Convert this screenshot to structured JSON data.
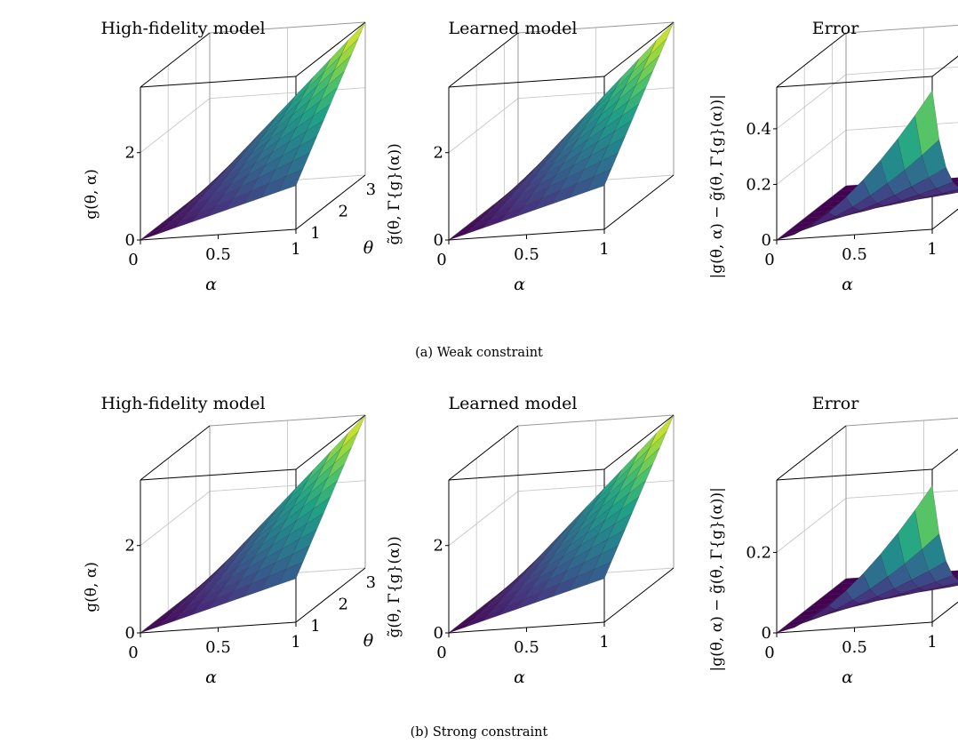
{
  "figure": {
    "captions": [
      "(a)  Weak constraint",
      "(b)  Strong constraint"
    ],
    "colormap": [
      "#440154",
      "#46327e",
      "#365c8d",
      "#277f8e",
      "#1fa187",
      "#4ac16d",
      "#a0da39",
      "#fde725"
    ]
  },
  "chart_data": [
    {
      "row": 0,
      "col": 0,
      "type": "surface",
      "title": "High-fidelity model",
      "xlabel": "α",
      "ylabel": "θ",
      "zlabel": "g(θ, α)",
      "x_range": [
        0,
        1
      ],
      "y_range": [
        1,
        3.5
      ],
      "z_range": [
        0,
        3.5
      ],
      "x_ticks": [
        "0",
        "0.5",
        "1"
      ],
      "x_tick_values": [
        0,
        0.5,
        1
      ],
      "y_ticks": [
        "1",
        "2",
        "3"
      ],
      "y_tick_values": [
        1,
        2,
        3
      ],
      "z_ticks": [
        "0",
        "2"
      ],
      "z_tick_values": [
        0,
        2
      ],
      "function": "theta*alpha",
      "grid": true
    },
    {
      "row": 0,
      "col": 1,
      "type": "surface",
      "title": "Learned model",
      "xlabel": "α",
      "ylabel": "",
      "zlabel": "g̃(θ, Γ{g}(α))",
      "x_range": [
        0,
        1
      ],
      "y_range": [
        1,
        3.5
      ],
      "z_range": [
        0,
        3.5
      ],
      "x_ticks": [
        "0",
        "0.5",
        "1"
      ],
      "x_tick_values": [
        0,
        0.5,
        1
      ],
      "y_ticks": [],
      "y_tick_values": [],
      "z_ticks": [
        "0",
        "2"
      ],
      "z_tick_values": [
        0,
        2
      ],
      "function": "theta*alpha",
      "grid": true
    },
    {
      "row": 0,
      "col": 2,
      "type": "surface",
      "title": "Error",
      "xlabel": "α",
      "ylabel": "",
      "zlabel": "|g(θ, α) − g̃(θ, Γ{g}(α))|",
      "x_range": [
        0,
        1
      ],
      "y_range": [
        1,
        3.5
      ],
      "z_range": [
        0,
        0.55
      ],
      "x_ticks": [
        "0",
        "0.5",
        "1"
      ],
      "x_tick_values": [
        0,
        0.5,
        1
      ],
      "y_ticks": [],
      "y_tick_values": [],
      "z_ticks": [
        "0",
        "0.2",
        "0.4"
      ],
      "z_tick_values": [
        0,
        0.2,
        0.4
      ],
      "function": "error",
      "peak": 0.5,
      "grid": true
    },
    {
      "row": 1,
      "col": 0,
      "type": "surface",
      "title": "High-fidelity model",
      "xlabel": "α",
      "ylabel": "θ",
      "zlabel": "g(θ, α)",
      "x_range": [
        0,
        1
      ],
      "y_range": [
        1,
        3.5
      ],
      "z_range": [
        0,
        3.5
      ],
      "x_ticks": [
        "0",
        "0.5",
        "1"
      ],
      "x_tick_values": [
        0,
        0.5,
        1
      ],
      "y_ticks": [
        "1",
        "2",
        "3"
      ],
      "y_tick_values": [
        1,
        2,
        3
      ],
      "z_ticks": [
        "0",
        "2"
      ],
      "z_tick_values": [
        0,
        2
      ],
      "function": "theta*alpha",
      "grid": true
    },
    {
      "row": 1,
      "col": 1,
      "type": "surface",
      "title": "Learned model",
      "xlabel": "α",
      "ylabel": "",
      "zlabel": "g̃(θ, Γ{g}(α))",
      "x_range": [
        0,
        1
      ],
      "y_range": [
        1,
        3.5
      ],
      "z_range": [
        0,
        3.5
      ],
      "x_ticks": [
        "0",
        "0.5",
        "1"
      ],
      "x_tick_values": [
        0,
        0.5,
        1
      ],
      "y_ticks": [],
      "y_tick_values": [],
      "z_ticks": [
        "0",
        "2"
      ],
      "z_tick_values": [
        0,
        2
      ],
      "function": "theta*alpha",
      "grid": true
    },
    {
      "row": 1,
      "col": 2,
      "type": "surface",
      "title": "Error",
      "xlabel": "α",
      "ylabel": "",
      "zlabel": "|g(θ, α) − g̃(θ, Γ{g}(α))|",
      "x_range": [
        0,
        1
      ],
      "y_range": [
        1,
        3.5
      ],
      "z_range": [
        0,
        0.38
      ],
      "x_ticks": [
        "0",
        "0.5",
        "1"
      ],
      "x_tick_values": [
        0,
        0.5,
        1
      ],
      "y_ticks": [],
      "y_tick_values": [],
      "z_ticks": [
        "0",
        "0.2"
      ],
      "z_tick_values": [
        0,
        0.2
      ],
      "function": "error",
      "peak": 0.34,
      "grid": true
    }
  ]
}
